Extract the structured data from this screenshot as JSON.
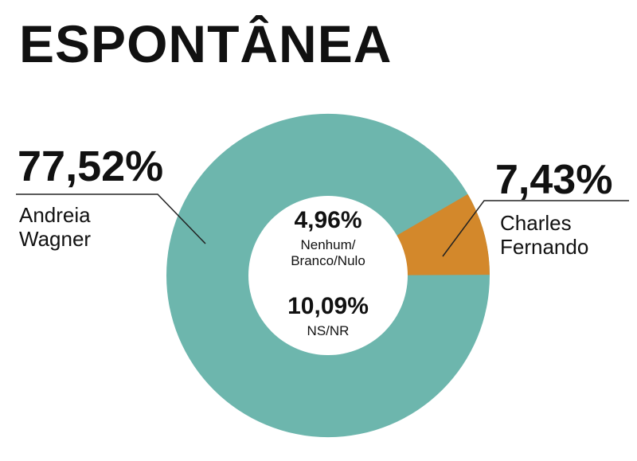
{
  "title": "ESPONTÂNEA",
  "colors": {
    "teal": "#6db6ad",
    "orange": "#d3882b",
    "leader": "#222222"
  },
  "chart_data": {
    "type": "pie",
    "title": "ESPONTÂNEA",
    "slices": [
      {
        "pct_label": "77,52%",
        "value": 77.52,
        "name": "Andreia\nWagner",
        "color": "#6db6ad"
      },
      {
        "pct_label": "7,43%",
        "value": 7.43,
        "name": "Charles\nFernando",
        "color": "#d3882b"
      }
    ],
    "center_labels": [
      {
        "pct_label": "4,96%",
        "value": 4.96,
        "name": "Nenhum/\nBranco/Nulo"
      },
      {
        "pct_label": "10,09%",
        "value": 10.09,
        "name": "NS/NR"
      }
    ]
  }
}
